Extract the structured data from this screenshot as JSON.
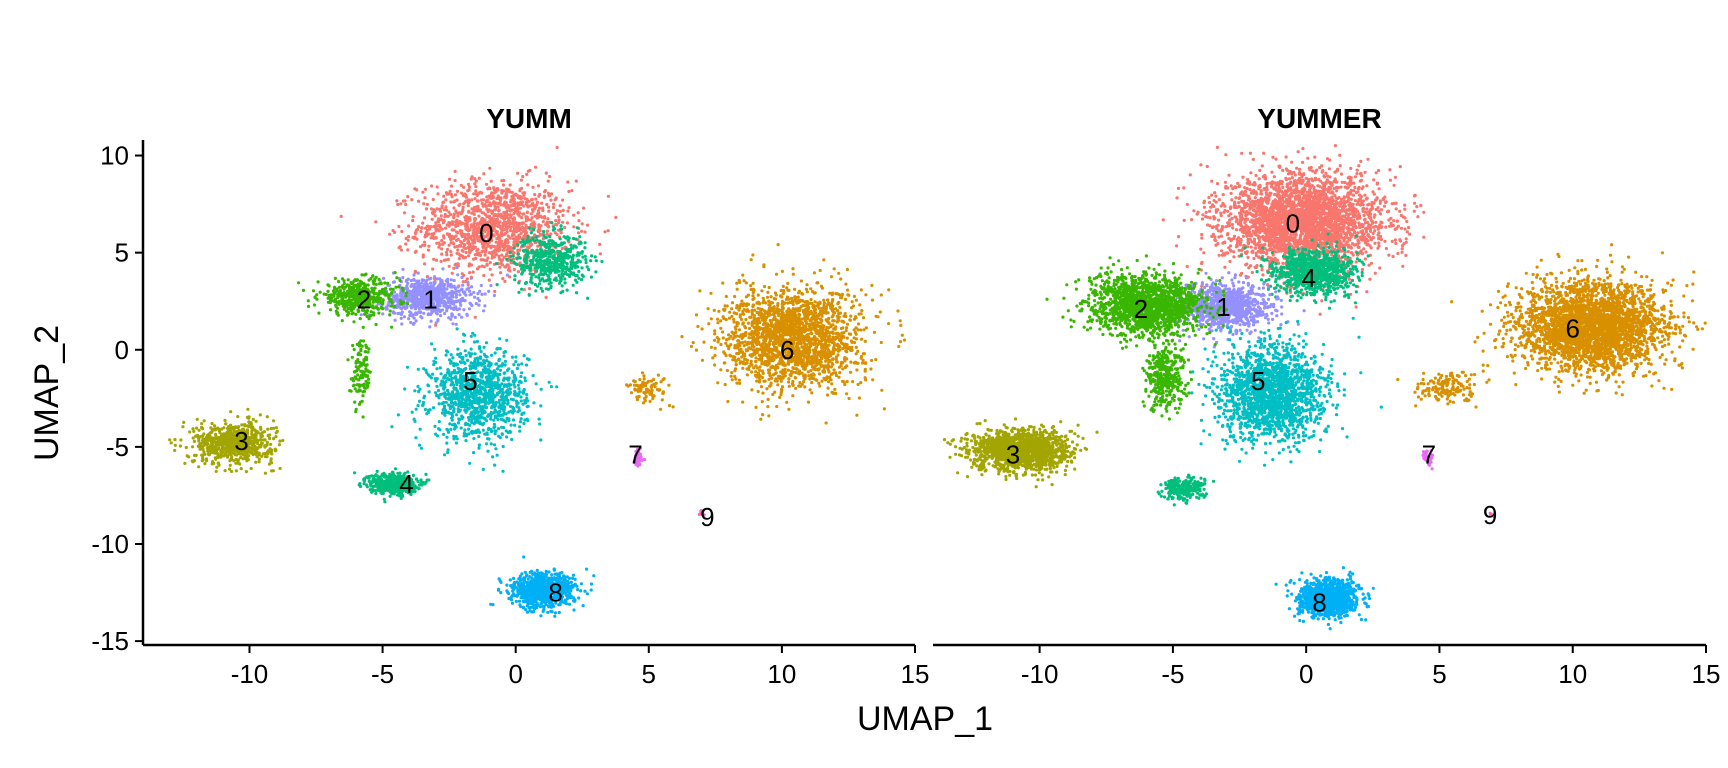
{
  "chart_data": {
    "type": "scatter",
    "xlabel": "UMAP_1",
    "ylabel": "UMAP_2",
    "xlim": [
      -14,
      15
    ],
    "ylim": [
      -15.2,
      10.8
    ],
    "x_ticks": [
      -10,
      -5,
      0,
      5,
      10,
      15
    ],
    "y_ticks": [
      10,
      5,
      0,
      -5,
      -10,
      -15
    ],
    "x_tick_labels": [
      "-10",
      "-5",
      "0",
      "5",
      "10",
      "15"
    ],
    "y_tick_labels": [
      "10",
      "5",
      "0",
      "-5",
      "-10",
      "-15"
    ],
    "cluster_colors": {
      "0": "#F8766D",
      "1": "#9590FF",
      "2": "#39B600",
      "3": "#A3A500",
      "4": "#00BF7D",
      "5": "#00BFC4",
      "6": "#D89000",
      "7": "#E76BF3",
      "8": "#00B0F6",
      "9": "#FF62BC"
    },
    "panels": [
      {
        "title": "YUMM",
        "clusters": [
          {
            "id": "0",
            "label": "0",
            "label_x": -1.1,
            "label_y": 6.0,
            "cx": -0.8,
            "cy": 6.3,
            "sx": 1.9,
            "sy": 1.6,
            "n": 1300
          },
          {
            "id": "4",
            "label": "",
            "label_x": 1.2,
            "label_y": 4.5,
            "cx": 1.3,
            "cy": 4.6,
            "sx": 0.9,
            "sy": 0.9,
            "n": 500
          },
          {
            "id": "1",
            "label": "1",
            "label_x": -3.2,
            "label_y": 2.6,
            "cx": -3.3,
            "cy": 2.7,
            "sx": 1.1,
            "sy": 0.7,
            "n": 700
          },
          {
            "id": "2",
            "label": "2",
            "label_x": -5.7,
            "label_y": 2.6,
            "cx": -5.9,
            "cy": 2.7,
            "sx": 1.0,
            "sy": 0.6,
            "n": 450
          },
          {
            "id": "2",
            "label": "",
            "label_x": -5.8,
            "label_y": -1.5,
            "cx": -5.8,
            "cy": -1.3,
            "sx": 0.25,
            "sy": 1.1,
            "n": 120
          },
          {
            "id": "5",
            "label": "5",
            "label_x": -1.7,
            "label_y": -1.6,
            "cx": -1.4,
            "cy": -2.3,
            "sx": 1.2,
            "sy": 1.5,
            "n": 1100
          },
          {
            "id": "3",
            "label": "3",
            "label_x": -10.3,
            "label_y": -4.7,
            "cx": -10.6,
            "cy": -4.8,
            "sx": 1.0,
            "sy": 0.7,
            "n": 700
          },
          {
            "id": "4",
            "label": "4",
            "label_x": -4.1,
            "label_y": -6.9,
            "cx": -4.6,
            "cy": -6.9,
            "sx": 0.6,
            "sy": 0.35,
            "n": 500
          },
          {
            "id": "6",
            "label": "6",
            "label_x": 10.2,
            "label_y": 0.0,
            "cx": 10.4,
            "cy": 0.6,
            "sx": 1.7,
            "sy": 1.7,
            "n": 2000
          },
          {
            "id": "6",
            "label": "",
            "label_x": 5.0,
            "label_y": -1.9,
            "cx": 5.0,
            "cy": -2.0,
            "sx": 0.5,
            "sy": 0.5,
            "n": 80
          },
          {
            "id": "7",
            "label": "7",
            "label_x": 4.5,
            "label_y": -5.4,
            "cx": 4.6,
            "cy": -5.6,
            "sx": 0.12,
            "sy": 0.3,
            "n": 50
          },
          {
            "id": "9",
            "label": "9",
            "label_x": 7.2,
            "label_y": -8.6,
            "cx": 7.0,
            "cy": -8.4,
            "sx": 0.1,
            "sy": 0.08,
            "n": 6
          },
          {
            "id": "8",
            "label": "8",
            "label_x": 1.5,
            "label_y": -12.5,
            "cx": 1.0,
            "cy": -12.4,
            "sx": 0.8,
            "sy": 0.6,
            "n": 800
          }
        ]
      },
      {
        "title": "YUMMER",
        "clusters": [
          {
            "id": "0",
            "label": "0",
            "label_x": -0.5,
            "label_y": 6.5,
            "cx": -0.1,
            "cy": 6.6,
            "sx": 2.0,
            "sy": 1.6,
            "n": 3000
          },
          {
            "id": "4",
            "label": "4",
            "label_x": 0.1,
            "label_y": 3.7,
            "cx": 0.3,
            "cy": 4.0,
            "sx": 1.0,
            "sy": 0.8,
            "n": 900
          },
          {
            "id": "1",
            "label": "1",
            "label_x": -3.1,
            "label_y": 2.2,
            "cx": -3.1,
            "cy": 2.2,
            "sx": 1.2,
            "sy": 0.8,
            "n": 900
          },
          {
            "id": "2",
            "label": "2",
            "label_x": -6.2,
            "label_y": 2.1,
            "cx": -6.0,
            "cy": 2.3,
            "sx": 1.4,
            "sy": 1.0,
            "n": 1600
          },
          {
            "id": "2",
            "label": "",
            "label_x": -5.2,
            "label_y": -1.5,
            "cx": -5.3,
            "cy": -1.4,
            "sx": 0.5,
            "sy": 1.1,
            "n": 350
          },
          {
            "id": "5",
            "label": "5",
            "label_x": -1.8,
            "label_y": -1.6,
            "cx": -1.3,
            "cy": -2.2,
            "sx": 1.3,
            "sy": 1.6,
            "n": 1800
          },
          {
            "id": "3",
            "label": "3",
            "label_x": -11.0,
            "label_y": -5.4,
            "cx": -10.8,
            "cy": -5.2,
            "sx": 1.2,
            "sy": 0.7,
            "n": 1500
          },
          {
            "id": "4",
            "label": "",
            "label_x": -4.6,
            "label_y": -7.3,
            "cx": -4.6,
            "cy": -7.2,
            "sx": 0.5,
            "sy": 0.4,
            "n": 250
          },
          {
            "id": "6",
            "label": "6",
            "label_x": 10.0,
            "label_y": 1.1,
            "cx": 10.7,
            "cy": 1.2,
            "sx": 1.8,
            "sy": 1.5,
            "n": 3000
          },
          {
            "id": "6",
            "label": "",
            "label_x": 5.5,
            "label_y": -2.0,
            "cx": 5.3,
            "cy": -1.9,
            "sx": 0.8,
            "sy": 0.5,
            "n": 150
          },
          {
            "id": "7",
            "label": "7",
            "label_x": 4.6,
            "label_y": -5.4,
            "cx": 4.6,
            "cy": -5.6,
            "sx": 0.12,
            "sy": 0.3,
            "n": 50
          },
          {
            "id": "9",
            "label": "9",
            "label_x": 6.9,
            "label_y": -8.5,
            "cx": 7.0,
            "cy": -8.5,
            "sx": 0.1,
            "sy": 0.08,
            "n": 6
          },
          {
            "id": "8",
            "label": "8",
            "label_x": 0.5,
            "label_y": -13.0,
            "cx": 0.8,
            "cy": -12.8,
            "sx": 0.7,
            "sy": 0.6,
            "n": 1200
          }
        ]
      }
    ]
  }
}
